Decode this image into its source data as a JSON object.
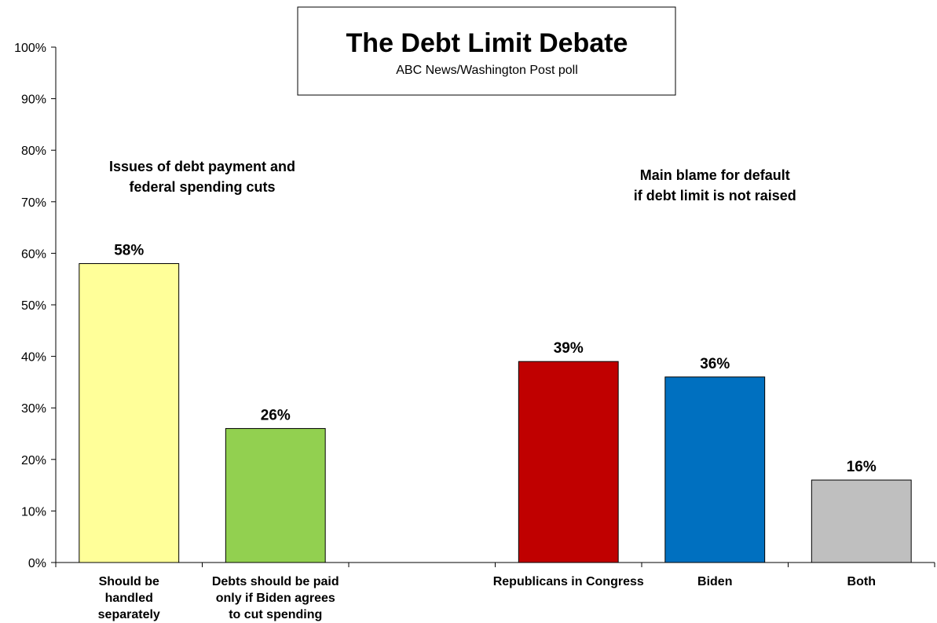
{
  "chart_data": {
    "type": "bar",
    "title": "The Debt Limit Debate",
    "subtitle": "ABC News/Washington  Post poll",
    "ylim": [
      0,
      100
    ],
    "y_ticks": [
      "0%",
      "10%",
      "20%",
      "30%",
      "40%",
      "50%",
      "60%",
      "70%",
      "80%",
      "90%",
      "100%"
    ],
    "grid": false,
    "groups": [
      {
        "label": [
          "Issues of debt payment and",
          "federal spending cuts"
        ],
        "bars": [
          {
            "category": [
              "Should be",
              "handled",
              "separately"
            ],
            "value": 58,
            "value_label": "58%",
            "color": "#ffff99"
          },
          {
            "category": [
              "Debts should be paid",
              "only if Biden agrees",
              "to cut spending"
            ],
            "value": 26,
            "value_label": "26%",
            "color": "#92d050"
          }
        ]
      },
      {
        "label": [
          "Main blame for default",
          "if debt limit is not raised"
        ],
        "bars": [
          {
            "category": [
              "Republicans in Congress"
            ],
            "value": 39,
            "value_label": "39%",
            "color": "#c00000"
          },
          {
            "category": [
              "Biden"
            ],
            "value": 36,
            "value_label": "36%",
            "color": "#0070c0"
          },
          {
            "category": [
              "Both"
            ],
            "value": 16,
            "value_label": "16%",
            "color": "#bfbfbf"
          }
        ]
      }
    ]
  }
}
